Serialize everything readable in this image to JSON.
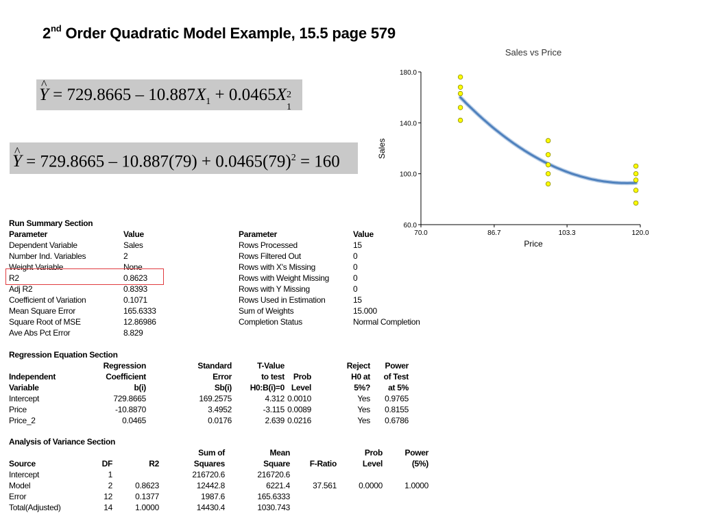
{
  "slide": {
    "title_prefix": "2",
    "title_sup": "nd",
    "title_rest": " Order Quadratic Model Example, 15.5 page 579"
  },
  "equations": {
    "eq1": {
      "yhat": "Y",
      "text_a": " = 729.8665 – 10.887",
      "x1": "X",
      "sub1": "1",
      "text_b": " + 0.0465",
      "x2": "X",
      "sup2": "2",
      "sub2": "1"
    },
    "eq2": {
      "yhat": "Y",
      "text_a": " = 729.8665 – 10.887",
      "p1": "(79)",
      "text_b": " + 0.0465",
      "p2": "(79)",
      "sup": "2",
      "text_c": " = 160"
    }
  },
  "run_summary": {
    "heading": "Run Summary Section",
    "col_param": "Parameter",
    "col_value": "Value",
    "left_rows": [
      {
        "p": "Dependent Variable",
        "v": "Sales"
      },
      {
        "p": "Number Ind. Variables",
        "v": "2"
      },
      {
        "p": "Weight Variable",
        "v": "None"
      },
      {
        "p": "R2",
        "v": "0.8623"
      },
      {
        "p": "Adj R2",
        "v": "0.8393"
      },
      {
        "p": "Coefficient of Variation",
        "v": "0.1071"
      },
      {
        "p": "Mean Square Error",
        "v": "165.6333"
      },
      {
        "p": "Square Root of MSE",
        "v": "12.86986"
      },
      {
        "p": "Ave Abs Pct Error",
        "v": "8.829"
      }
    ],
    "right_rows": [
      {
        "p": "Rows Processed",
        "v": "15"
      },
      {
        "p": "Rows Filtered Out",
        "v": "0"
      },
      {
        "p": "Rows with X's Missing",
        "v": "0"
      },
      {
        "p": "Rows with Weight Missing",
        "v": "0"
      },
      {
        "p": "Rows with Y Missing",
        "v": "0"
      },
      {
        "p": "Rows Used in Estimation",
        "v": "15"
      },
      {
        "p": "Sum of Weights",
        "v": "15.000"
      },
      {
        "p": "Completion Status",
        "v": "Normal Completion"
      }
    ]
  },
  "regression": {
    "heading": "Regression Equation Section",
    "headers": {
      "h1": [
        "",
        "Independent",
        "Variable"
      ],
      "h2": [
        "Regression",
        "Coefficient",
        "b(i)"
      ],
      "h3": [
        "Standard",
        "Error",
        "Sb(i)"
      ],
      "h4": [
        "T-Value",
        "to test",
        "H0:B(i)=0"
      ],
      "h5": [
        "",
        "Prob",
        "Level"
      ],
      "h6": [
        "Reject",
        "H0 at",
        "5%?"
      ],
      "h7": [
        "Power",
        "of Test",
        "at 5%"
      ]
    },
    "rows": [
      [
        "Intercept",
        "729.8665",
        "169.2575",
        "4.312",
        "0.0010",
        "Yes",
        "0.9765"
      ],
      [
        "Price",
        "-10.8870",
        "3.4952",
        "-3.115",
        "0.0089",
        "Yes",
        "0.8155"
      ],
      [
        "Price_2",
        "0.0465",
        "0.0176",
        "2.639",
        "0.0216",
        "Yes",
        "0.6786"
      ]
    ]
  },
  "anova": {
    "heading": "Analysis of Variance Section",
    "headers": {
      "h1": [
        "",
        "Source"
      ],
      "h2": [
        "",
        "DF"
      ],
      "h3": [
        "",
        "R2"
      ],
      "h4": [
        "Sum of",
        "Squares"
      ],
      "h5": [
        "Mean",
        "Square"
      ],
      "h6": [
        "",
        "F-Ratio"
      ],
      "h7": [
        "Prob",
        "Level"
      ],
      "h8": [
        "Power",
        "(5%)"
      ]
    },
    "rows": [
      [
        "Intercept",
        "1",
        "",
        "216720.6",
        "216720.6",
        "",
        "",
        ""
      ],
      [
        "Model",
        "2",
        "0.8623",
        "12442.8",
        "6221.4",
        "37.561",
        "0.0000",
        "1.0000"
      ],
      [
        "Error",
        "12",
        "0.1377",
        "1987.6",
        "165.6333",
        "",
        "",
        ""
      ],
      [
        "Total(Adjusted)",
        "14",
        "1.0000",
        "14430.4",
        "1030.743",
        "",
        "",
        ""
      ]
    ]
  },
  "chart_data": {
    "type": "scatter",
    "title": "Sales vs Price",
    "xlabel": "Price",
    "ylabel": "Sales",
    "xlim": [
      70.0,
      120.0
    ],
    "ylim": [
      60.0,
      180.0
    ],
    "xticks": [
      "70.0",
      "86.7",
      "103.3",
      "120.0"
    ],
    "yticks": [
      "60.0",
      "100.0",
      "140.0",
      "180.0"
    ],
    "points": [
      {
        "x": 79,
        "y": 176
      },
      {
        "x": 79,
        "y": 168
      },
      {
        "x": 79,
        "y": 163
      },
      {
        "x": 79,
        "y": 152
      },
      {
        "x": 79,
        "y": 142
      },
      {
        "x": 99,
        "y": 126
      },
      {
        "x": 99,
        "y": 115
      },
      {
        "x": 99,
        "y": 107
      },
      {
        "x": 99,
        "y": 100
      },
      {
        "x": 99,
        "y": 92
      },
      {
        "x": 119,
        "y": 106
      },
      {
        "x": 119,
        "y": 100
      },
      {
        "x": 119,
        "y": 95
      },
      {
        "x": 119,
        "y": 87
      },
      {
        "x": 119,
        "y": 77
      }
    ],
    "fit": {
      "type": "quadratic",
      "b0": 729.8665,
      "b1": -10.887,
      "b2": 0.0465,
      "x_from": 79,
      "x_to": 119
    },
    "colors": {
      "point_fill": "#ffff00",
      "point_stroke": "#8a8a00",
      "fit_line": "#4f81bd",
      "axis": "#000000"
    }
  }
}
